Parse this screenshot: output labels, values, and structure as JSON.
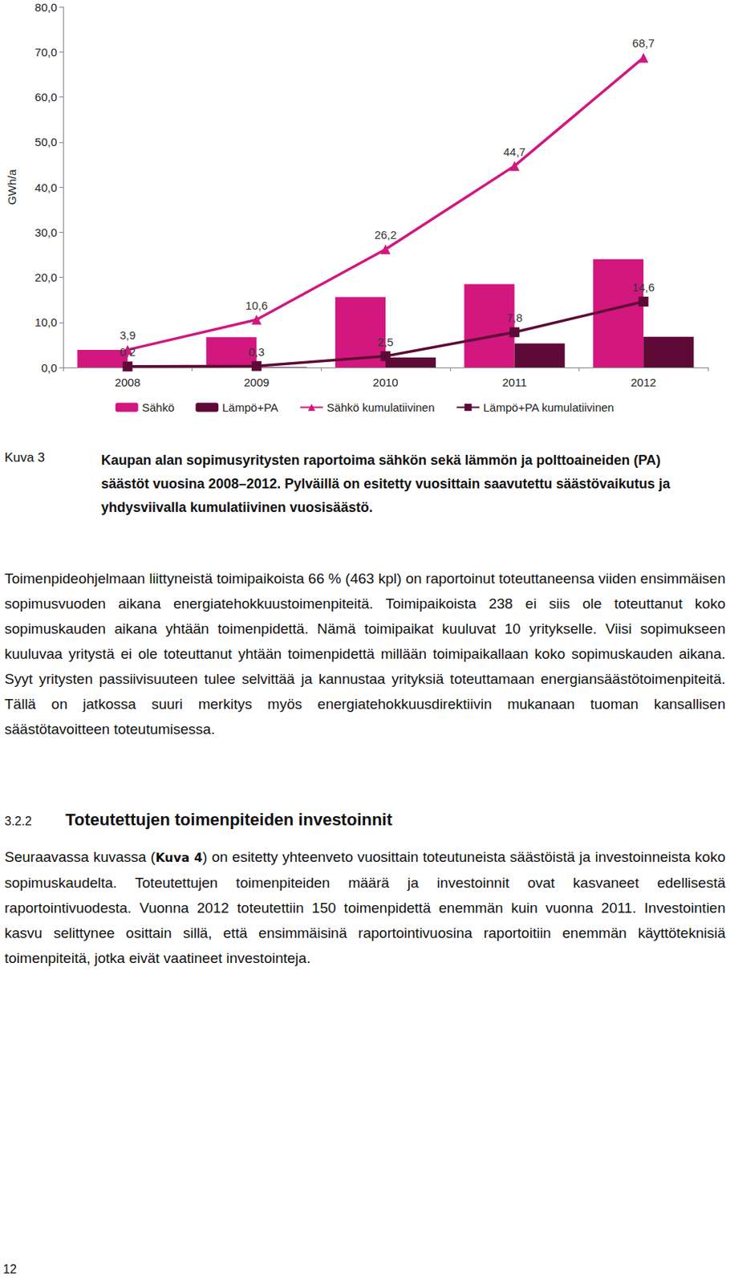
{
  "chart_data": {
    "type": "bar",
    "y_label": "GWh/a",
    "categories": [
      "2008",
      "2009",
      "2010",
      "2011",
      "2012"
    ],
    "series": [
      {
        "name": "Sähkö",
        "type": "bar",
        "color": "#d2177f",
        "values": [
          3.9,
          6.7,
          15.6,
          18.5,
          24.0
        ],
        "data_labels": false
      },
      {
        "name": "Lämpö+PA",
        "type": "bar",
        "color": "#5e0a36",
        "values": [
          0.2,
          0.1,
          2.2,
          5.3,
          6.8
        ],
        "data_labels": false
      },
      {
        "name": "Sähkö kumulatiivinen",
        "type": "line",
        "color": "#d2177f",
        "marker": "triangle",
        "line_style": "solid",
        "values": [
          3.9,
          10.6,
          26.2,
          44.7,
          68.7
        ],
        "value_labels": [
          "3,9",
          "10,6",
          "26,2",
          "44,7",
          "68,7"
        ],
        "data_labels": true
      },
      {
        "name": "Lämpö+PA kumulatiivinen",
        "type": "line",
        "color": "#5e0a36",
        "marker": "rect",
        "line_style": "solid",
        "values": [
          0.2,
          0.3,
          2.5,
          7.8,
          14.6
        ],
        "value_labels": [
          "0,2",
          "0,3",
          "2,5",
          "7,8",
          "14,6"
        ],
        "data_labels": true
      }
    ],
    "ylim": [
      0,
      80
    ],
    "yticks": [
      {
        "value": 0,
        "label": "0,0"
      },
      {
        "value": 10,
        "label": "10,0"
      },
      {
        "value": 20,
        "label": "20,0"
      },
      {
        "value": 30,
        "label": "30,0"
      },
      {
        "value": 40,
        "label": "40,0"
      },
      {
        "value": 50,
        "label": "50,0"
      },
      {
        "value": 60,
        "label": "60,0"
      },
      {
        "value": 70,
        "label": "70,0"
      },
      {
        "value": 80,
        "label": "80,0"
      }
    ],
    "grid": false,
    "legend": "bottom"
  },
  "caption": {
    "label": "Kuva 3",
    "text": "Kaupan alan sopimusyritysten raportoima sähkön sekä lämmön ja polttoaineiden (PA) säästöt vuosina 2008–2012. Pylväillä on esitetty vuosittain saavutettu säästövaikutus ja yhdysviivalla kumulatiivinen vuosisäästö."
  },
  "paragraph_1": "Toimenpideohjelmaan liittyneistä toimipaikoista 66 % (463 kpl) on raportoinut toteuttaneensa viiden ensimmäisen sopimusvuoden aikana energiatehokkuustoimenpiteitä. Toimipaikoista 238 ei siis ole toteuttanut koko sopimuskauden aikana yhtään toimenpidettä. Nämä toimipaikat kuuluvat 10 yritykselle. Viisi sopimukseen kuuluvaa yritystä ei ole toteuttanut yhtään toimenpidettä millään toimipaikallaan koko sopimuskauden aikana. Syyt yritysten passiivisuuteen tulee selvittää ja kannustaa yrityksiä toteuttamaan energiansäästötoimenpiteitä. Tällä on jatkossa suuri merkitys myös energiatehokkuusdirektiivin mukanaan tuoman kansallisen säästötavoitteen toteutumisessa.",
  "section": {
    "number": "3.2.2",
    "title": "Toteutettujen toimenpiteiden investoinnit"
  },
  "paragraph_2": {
    "before": "Seuraavassa kuvassa (",
    "ref": "Kuva 4",
    "after": ") on esitetty yhteenveto vuosittain toteutuneista säästöistä ja investoinneista koko sopimuskaudelta. Toteutettujen toimenpiteiden määrä ja investoinnit ovat kasvaneet edellisestä raportointivuodesta. Vuonna 2012 toteutettiin 150 toimenpidettä enemmän kuin vuonna 2011. Investointien kasvu selittynee osittain sillä, että ensimmäisinä raportointivuosina raportoitiin enemmän käyttöteknisiä toimenpiteitä, jotka eivät vaatineet investointeja."
  },
  "page_number": "12"
}
